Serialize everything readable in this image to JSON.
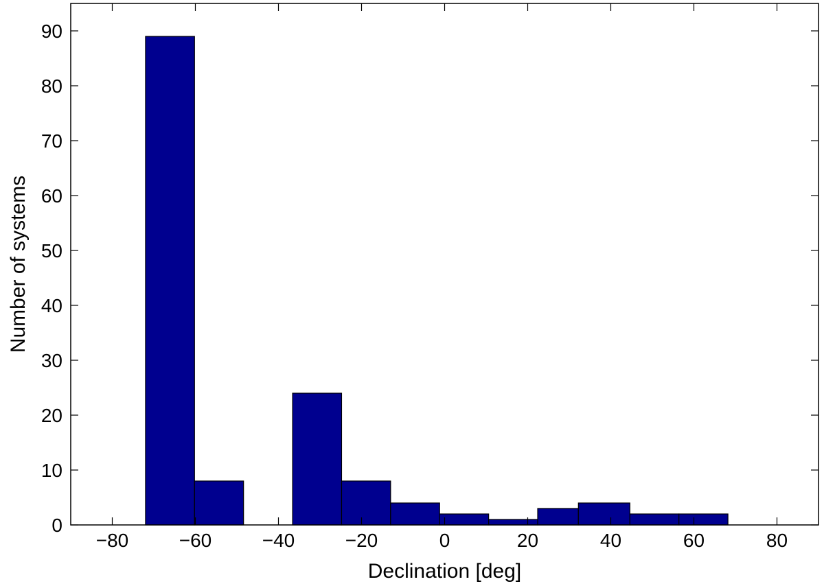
{
  "chart_data": {
    "type": "bar",
    "subtype": "histogram",
    "title": "",
    "xlabel": "Declination [deg]",
    "ylabel": "Number of systems",
    "xlim": [
      -90,
      90
    ],
    "ylim": [
      0,
      95
    ],
    "x_ticks": [
      -80,
      -60,
      -40,
      -20,
      0,
      20,
      40,
      60,
      80
    ],
    "y_ticks": [
      0,
      10,
      20,
      30,
      40,
      50,
      60,
      70,
      80,
      90
    ],
    "x_tick_labels": [
      "−80",
      "−60",
      "−40",
      "−20",
      "0",
      "20",
      "40",
      "60",
      "80"
    ],
    "y_tick_labels": [
      "0",
      "10",
      "20",
      "30",
      "40",
      "50",
      "60",
      "70",
      "80",
      "90"
    ],
    "bar_color": "#00008f",
    "grid": false,
    "bins": [
      {
        "x0": -72.0,
        "x1": -60.2,
        "value": 89
      },
      {
        "x0": -60.2,
        "x1": -48.4,
        "value": 8
      },
      {
        "x0": -48.4,
        "x1": -36.6,
        "value": 0
      },
      {
        "x0": -36.6,
        "x1": -24.8,
        "value": 24
      },
      {
        "x0": -24.8,
        "x1": -13.0,
        "value": 8
      },
      {
        "x0": -13.0,
        "x1": -1.2,
        "value": 4
      },
      {
        "x0": -1.2,
        "x1": 10.6,
        "value": 2
      },
      {
        "x0": 10.6,
        "x1": 22.4,
        "value": 1
      },
      {
        "x0": 22.4,
        "x1": 32.2,
        "value": 3
      },
      {
        "x0": 32.2,
        "x1": 44.6,
        "value": 4
      },
      {
        "x0": 44.6,
        "x1": 56.4,
        "value": 2
      },
      {
        "x0": 56.4,
        "x1": 68.2,
        "value": 2
      }
    ]
  }
}
